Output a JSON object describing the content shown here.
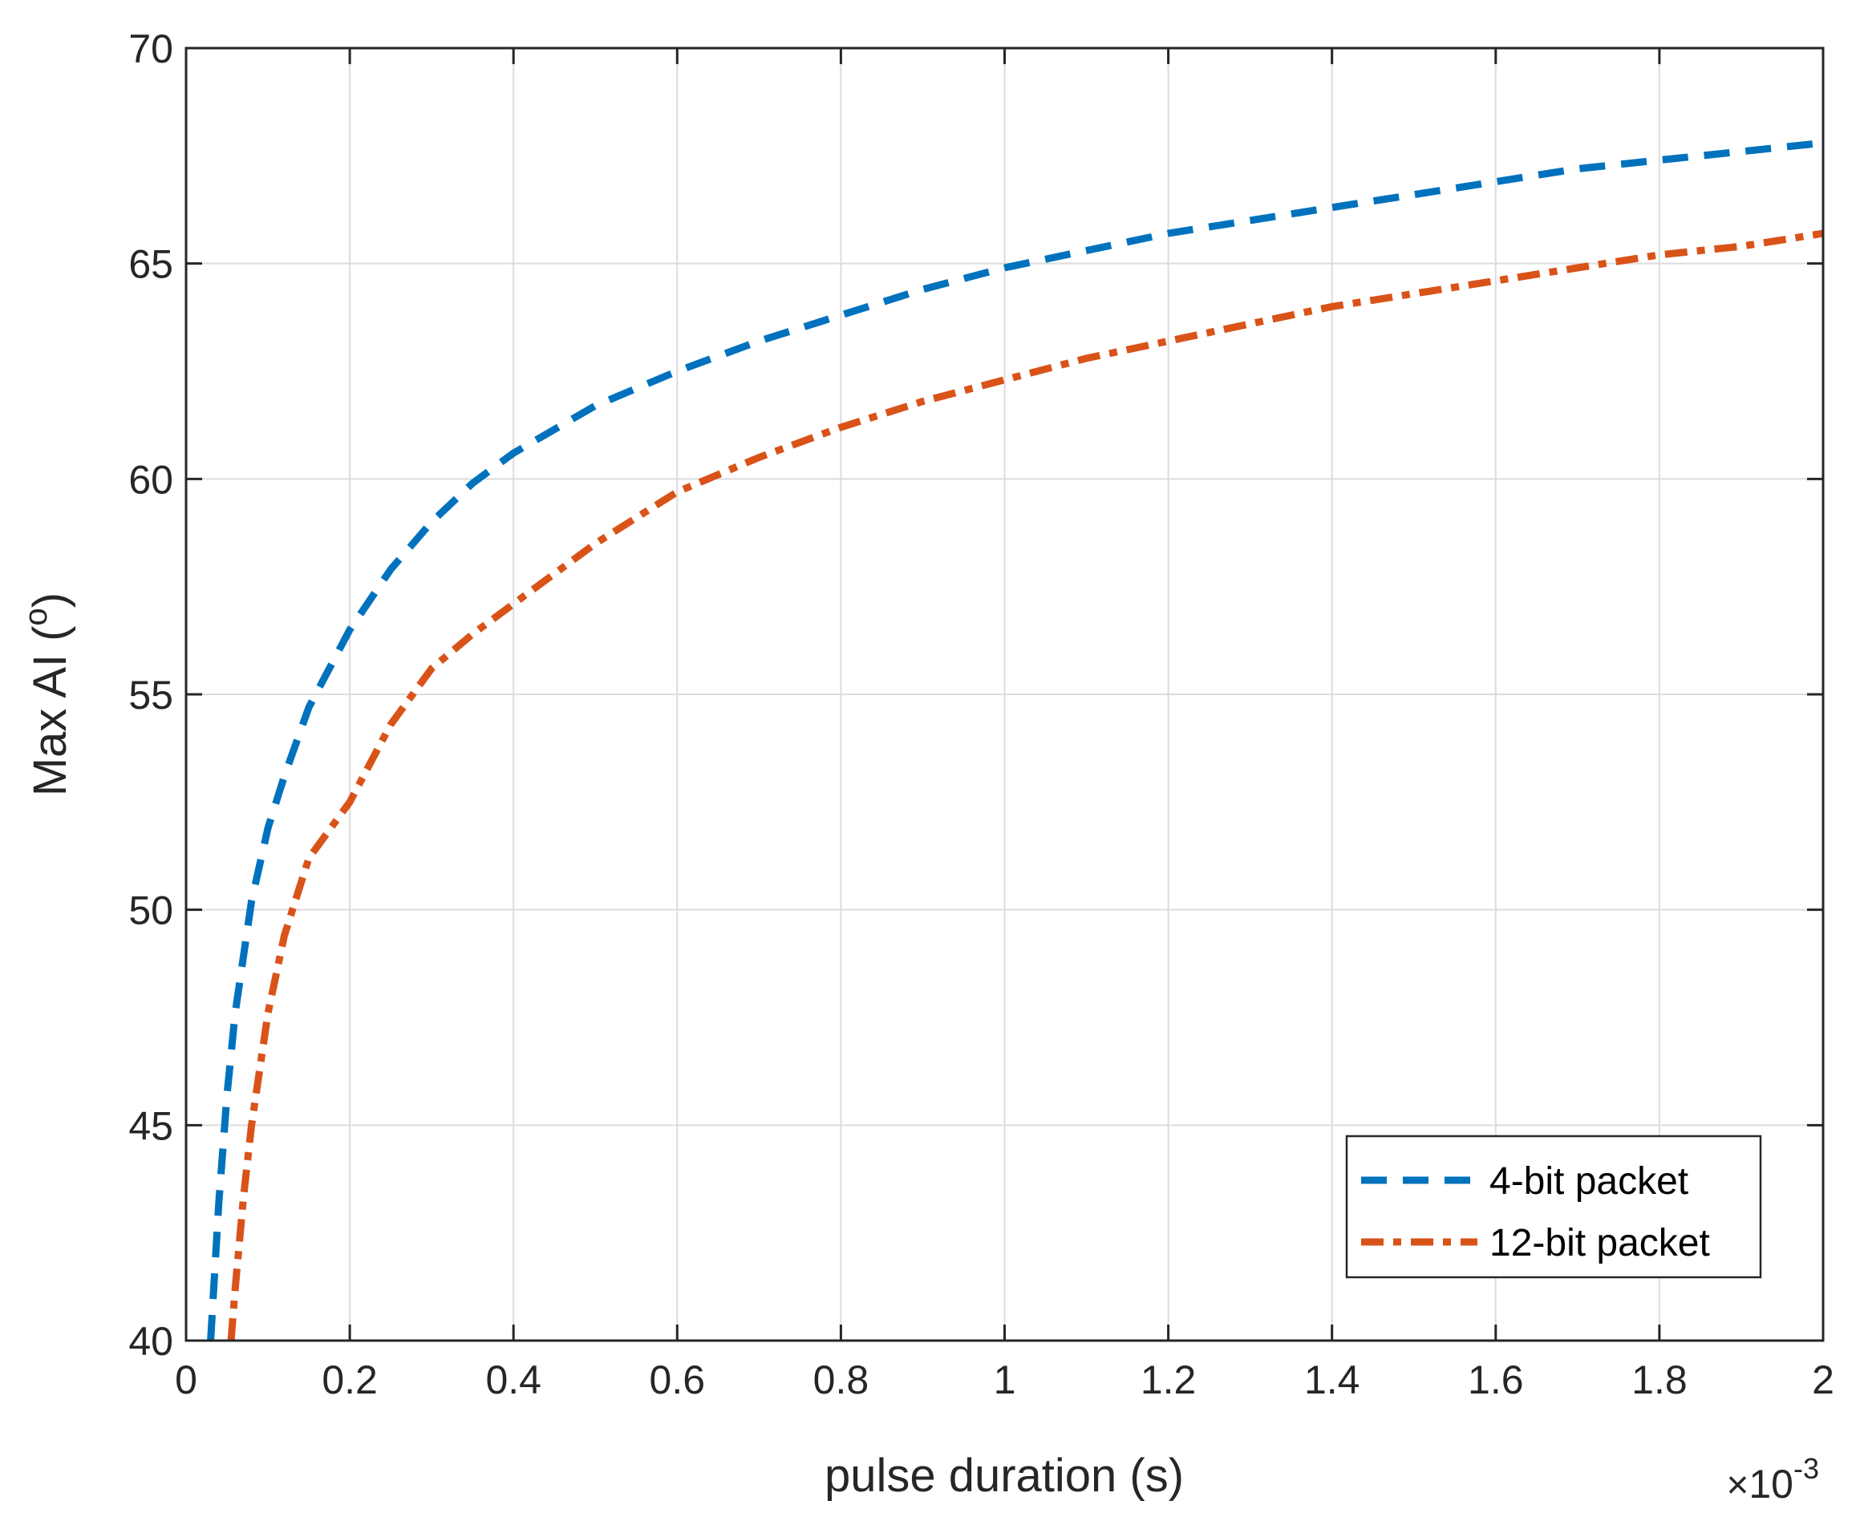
{
  "chart_data": {
    "type": "line",
    "title": "",
    "xlabel": "pulse duration (s)",
    "ylabel": "Max AI (°)",
    "ylabel_main": "Max AI (",
    "ylabel_sup": "o",
    "ylabel_close": ")",
    "x_multiplier": {
      "times": "×",
      "base": "10",
      "exponent": "-3"
    },
    "xlim": [
      0,
      2
    ],
    "ylim": [
      40,
      70
    ],
    "xticks": [
      0,
      0.2,
      0.4,
      0.6,
      0.8,
      1,
      1.2,
      1.4,
      1.6,
      1.8,
      2
    ],
    "xtick_labels": [
      "0",
      "0.2",
      "0.4",
      "0.6",
      "0.8",
      "1",
      "1.2",
      "1.4",
      "1.6",
      "1.8",
      "2"
    ],
    "yticks": [
      40,
      45,
      50,
      55,
      60,
      65,
      70
    ],
    "ytick_labels": [
      "40",
      "45",
      "50",
      "55",
      "60",
      "65",
      "70"
    ],
    "grid": true,
    "legend_position": "bottom-right",
    "series": [
      {
        "name": "4-bit packet",
        "color": "#0072BD",
        "style": "dashed",
        "x": [
          0.03,
          0.04,
          0.05,
          0.06,
          0.08,
          0.1,
          0.12,
          0.15,
          0.2,
          0.25,
          0.3,
          0.35,
          0.4,
          0.5,
          0.6,
          0.7,
          0.8,
          0.9,
          1.0,
          1.1,
          1.2,
          1.3,
          1.4,
          1.5,
          1.6,
          1.7,
          1.8,
          1.9,
          2.0
        ],
        "y": [
          40.0,
          43.2,
          45.7,
          47.6,
          50.2,
          51.9,
          53.1,
          54.7,
          56.5,
          57.9,
          59.0,
          59.9,
          60.6,
          61.7,
          62.5,
          63.2,
          63.8,
          64.4,
          64.9,
          65.3,
          65.7,
          66.0,
          66.3,
          66.6,
          66.9,
          67.2,
          67.4,
          67.6,
          67.8
        ]
      },
      {
        "name": "12-bit packet",
        "color": "#D95319",
        "style": "dashdot",
        "x": [
          0.055,
          0.06,
          0.07,
          0.08,
          0.1,
          0.12,
          0.15,
          0.2,
          0.25,
          0.3,
          0.35,
          0.4,
          0.5,
          0.6,
          0.7,
          0.8,
          0.9,
          1.0,
          1.1,
          1.2,
          1.3,
          1.4,
          1.5,
          1.6,
          1.7,
          1.8,
          1.9,
          2.0
        ],
        "y": [
          40.0,
          41.2,
          43.3,
          45.0,
          47.6,
          49.4,
          51.2,
          52.5,
          54.3,
          55.6,
          56.4,
          57.1,
          58.5,
          59.7,
          60.5,
          61.2,
          61.8,
          62.3,
          62.8,
          63.2,
          63.6,
          64.0,
          64.3,
          64.6,
          64.9,
          65.2,
          65.4,
          65.7
        ]
      }
    ]
  }
}
